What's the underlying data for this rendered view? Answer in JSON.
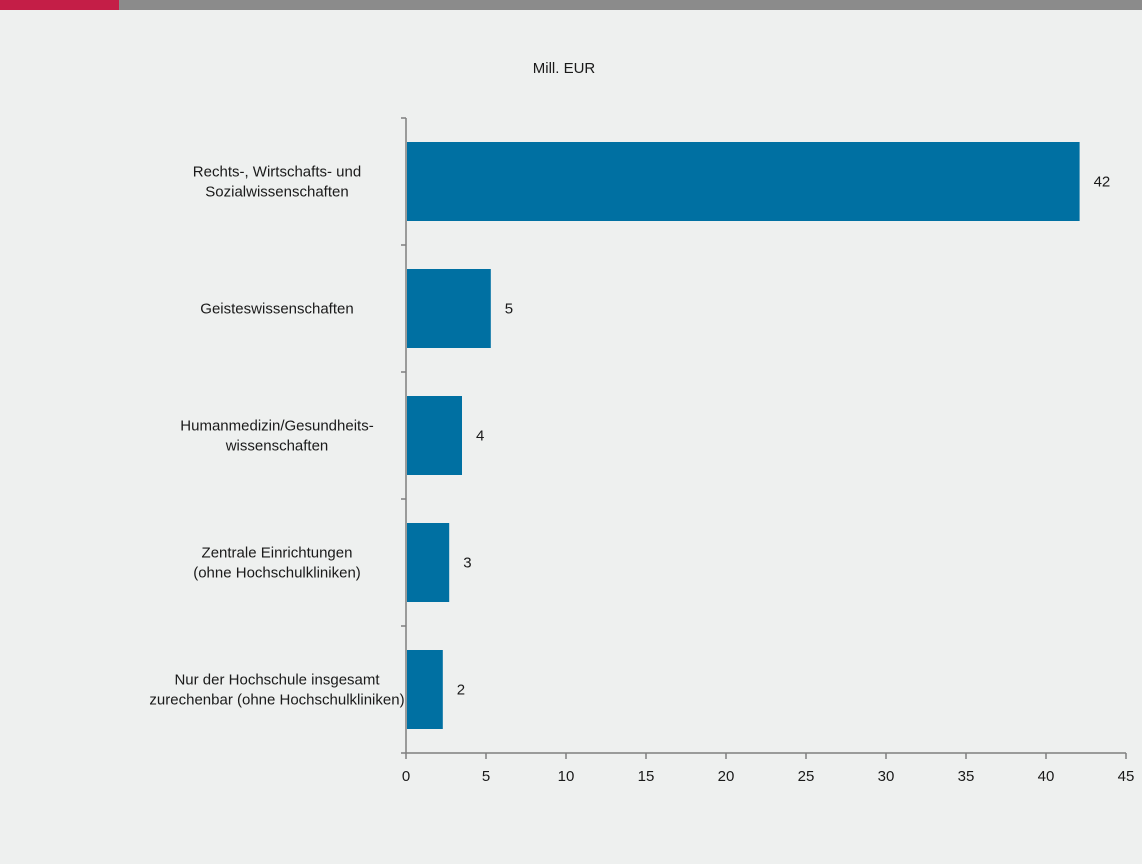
{
  "colors": {
    "background": "#eef0ef",
    "top_bar": "#8b8b8b",
    "top_bar_accent": "#c41e47",
    "bar": "#0070a2",
    "axis": "#7f7f7f"
  },
  "chart_data": {
    "type": "bar",
    "orientation": "horizontal",
    "unit_label": "Mill. EUR",
    "categories": [
      [
        "Rechts-, Wirtschafts- und",
        "Sozialwissenschaften"
      ],
      [
        "Geisteswissenschaften"
      ],
      [
        "Humanmedizin/Gesundheits-",
        "wissenschaften"
      ],
      [
        "Zentrale Einrichtungen",
        "(ohne Hochschulkliniken)"
      ],
      [
        "Nur der Hochschule insgesamt",
        "zurechenbar (ohne Hochschulkliniken)"
      ]
    ],
    "values": [
      42.1,
      5.3,
      3.5,
      2.7,
      2.3
    ],
    "value_labels": [
      "42",
      "5",
      "4",
      "3",
      "2"
    ],
    "xlim": [
      0,
      45
    ],
    "x_ticks": [
      0,
      5,
      10,
      15,
      20,
      25,
      30,
      35,
      40,
      45
    ],
    "grid": false
  }
}
